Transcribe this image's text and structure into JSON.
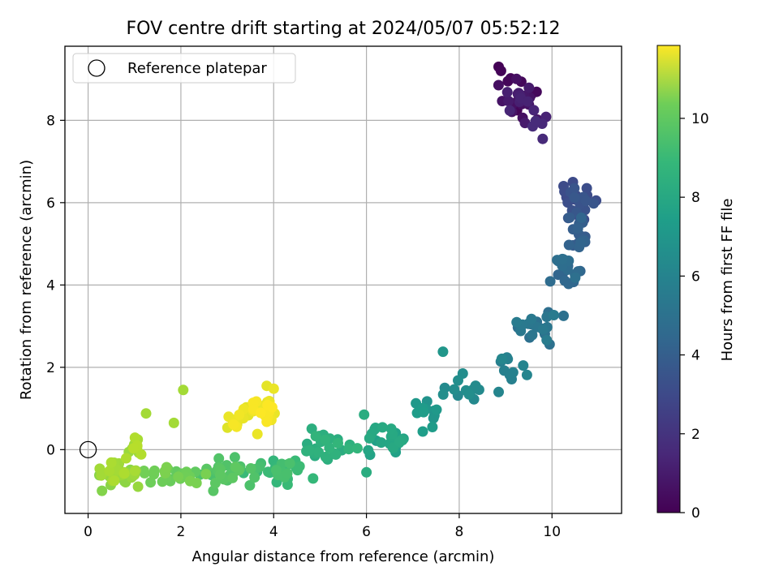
{
  "chart_data": {
    "type": "scatter",
    "title": "FOV centre drift starting at 2024/05/07 05:52:12",
    "xlabel": "Angular distance from reference (arcmin)",
    "ylabel": "Rotation from reference (arcmin)",
    "xlim": [
      -0.5,
      11.5
    ],
    "ylim": [
      -1.55,
      9.8
    ],
    "x_ticks": [
      0,
      2,
      4,
      6,
      8,
      10
    ],
    "y_ticks": [
      0,
      2,
      4,
      6,
      8
    ],
    "grid": true,
    "legend": {
      "position": "top-left",
      "entries": [
        "Reference platepar"
      ]
    },
    "reference_point": {
      "x": 0,
      "y": 0,
      "marker": "open-circle"
    },
    "colorbar": {
      "label": "Hours from first FF file",
      "colormap": "viridis",
      "range": [
        0,
        11.85
      ],
      "ticks": [
        0,
        2,
        4,
        6,
        8,
        10
      ]
    },
    "clusters": [
      {
        "x": 9.3,
        "y": 8.5,
        "sx": 0.35,
        "sy": 0.45,
        "n": 30,
        "c0": 0.0,
        "c1": 1.3
      },
      {
        "x": 9.7,
        "y": 7.9,
        "sx": 0.15,
        "sy": 0.3,
        "n": 5,
        "c0": 1.0,
        "c1": 1.5
      },
      {
        "x": 10.6,
        "y": 6.0,
        "sx": 0.25,
        "sy": 0.35,
        "n": 22,
        "c0": 2.6,
        "c1": 3.3
      },
      {
        "x": 10.6,
        "y": 5.2,
        "sx": 0.2,
        "sy": 0.4,
        "n": 18,
        "c0": 3.2,
        "c1": 3.9
      },
      {
        "x": 10.3,
        "y": 4.2,
        "sx": 0.35,
        "sy": 0.4,
        "n": 18,
        "c0": 3.8,
        "c1": 4.4
      },
      {
        "x": 9.7,
        "y": 3.0,
        "sx": 0.3,
        "sy": 0.35,
        "n": 20,
        "c0": 4.3,
        "c1": 5.0
      },
      {
        "x": 9.0,
        "y": 2.1,
        "sx": 0.35,
        "sy": 0.3,
        "n": 10,
        "c0": 5.0,
        "c1": 5.5
      },
      {
        "x": 8.0,
        "y": 1.5,
        "sx": 0.4,
        "sy": 0.25,
        "n": 12,
        "c0": 5.5,
        "c1": 6.0
      },
      {
        "x": 7.3,
        "y": 0.9,
        "sx": 0.45,
        "sy": 0.35,
        "n": 12,
        "c0": 6.0,
        "c1": 6.6
      },
      {
        "x": 6.5,
        "y": 0.3,
        "sx": 0.45,
        "sy": 0.3,
        "n": 25,
        "c0": 6.6,
        "c1": 7.2
      },
      {
        "x": 5.2,
        "y": 0.1,
        "sx": 0.55,
        "sy": 0.35,
        "n": 25,
        "c0": 7.2,
        "c1": 7.8
      },
      {
        "x": 4.1,
        "y": -0.5,
        "sx": 0.5,
        "sy": 0.25,
        "n": 25,
        "c0": 7.8,
        "c1": 8.4
      },
      {
        "x": 3.0,
        "y": -0.55,
        "sx": 0.55,
        "sy": 0.25,
        "n": 25,
        "c0": 8.4,
        "c1": 8.9
      },
      {
        "x": 1.8,
        "y": -0.6,
        "sx": 0.55,
        "sy": 0.2,
        "n": 25,
        "c0": 8.9,
        "c1": 9.5
      },
      {
        "x": 0.6,
        "y": -0.55,
        "sx": 0.4,
        "sy": 0.25,
        "n": 40,
        "c0": 9.5,
        "c1": 10.4
      },
      {
        "x": 1.0,
        "y": 0.05,
        "sx": 0.25,
        "sy": 0.25,
        "n": 12,
        "c0": 10.0,
        "c1": 10.6
      },
      {
        "x": 3.6,
        "y": 0.95,
        "sx": 0.35,
        "sy": 0.25,
        "n": 35,
        "c0": 11.3,
        "c1": 11.85
      },
      {
        "x": 3.1,
        "y": 0.6,
        "sx": 0.2,
        "sy": 0.15,
        "n": 10,
        "c0": 11.2,
        "c1": 11.8
      }
    ],
    "points": [
      {
        "x": 2.05,
        "y": 1.45,
        "c": 10.2
      },
      {
        "x": 1.25,
        "y": 0.88,
        "c": 10.2
      },
      {
        "x": 1.85,
        "y": 0.65,
        "c": 10.2
      },
      {
        "x": 7.65,
        "y": 2.38,
        "c": 6.2
      },
      {
        "x": 5.95,
        "y": 0.85,
        "c": 7.3
      },
      {
        "x": 10.95,
        "y": 6.05,
        "c": 2.8
      },
      {
        "x": 10.45,
        "y": 6.5,
        "c": 2.7
      },
      {
        "x": 10.25,
        "y": 6.4,
        "c": 2.7
      },
      {
        "x": 10.75,
        "y": 6.35,
        "c": 2.8
      },
      {
        "x": 9.8,
        "y": 7.55,
        "c": 1.4
      },
      {
        "x": 8.85,
        "y": 9.3,
        "c": 0.05
      },
      {
        "x": 8.9,
        "y": 9.2,
        "c": 0.1
      },
      {
        "x": 9.05,
        "y": 8.95,
        "c": 0.2
      },
      {
        "x": 10.25,
        "y": 3.25,
        "c": 4.4
      },
      {
        "x": 8.85,
        "y": 1.4,
        "c": 5.4
      },
      {
        "x": 4.0,
        "y": 1.48,
        "c": 11.5
      },
      {
        "x": 3.85,
        "y": 1.55,
        "c": 11.4
      },
      {
        "x": 3.95,
        "y": 0.72,
        "c": 11.6
      },
      {
        "x": 3.65,
        "y": 0.38,
        "c": 11.5
      },
      {
        "x": 2.7,
        "y": -1.0,
        "c": 8.7
      },
      {
        "x": 0.3,
        "y": -1.0,
        "c": 9.6
      },
      {
        "x": 4.3,
        "y": -0.85,
        "c": 8.0
      },
      {
        "x": 4.85,
        "y": -0.7,
        "c": 7.9
      },
      {
        "x": 6.0,
        "y": -0.55,
        "c": 7.3
      }
    ]
  }
}
